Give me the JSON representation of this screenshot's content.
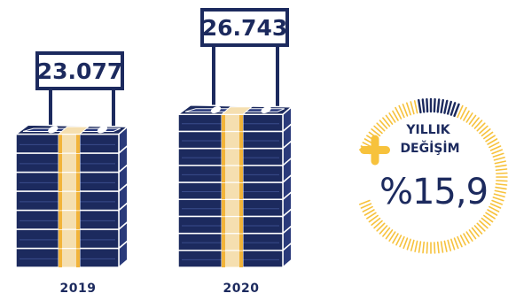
{
  "stacks": [
    {
      "year": "2019",
      "value": "23.077",
      "bundles": 7
    },
    {
      "year": "2020",
      "value": "26.743",
      "bundles": 9
    }
  ],
  "badge": {
    "line1": "YILLIK",
    "line2": "DEĞİŞİM",
    "percent": "%15,9",
    "icon": "plus-icon"
  },
  "colors": {
    "navy": "#1c2a5e",
    "bundle_side": "#2a3a7a",
    "band": "#f5dfb0",
    "band_edge": "#f2b43a",
    "ring": "#f7c23c"
  }
}
